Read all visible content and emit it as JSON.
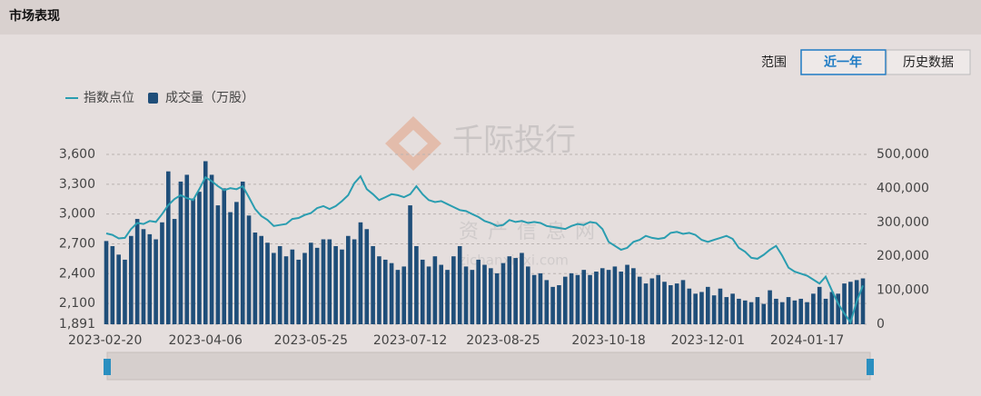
{
  "header": {
    "title": "市场表现"
  },
  "controls": {
    "label": "范围",
    "buttons": [
      "近一年",
      "历史数据"
    ]
  },
  "watermark": {
    "brand": "千际投行",
    "site_cn": "资产信息网",
    "site_url": "zichanxinxi.com"
  },
  "chart_data": {
    "type": "combo",
    "categories": [
      "2023-02-20",
      null,
      null,
      null,
      null,
      null,
      null,
      null,
      null,
      null,
      null,
      null,
      null,
      null,
      null,
      null,
      "2023-04-06",
      null,
      null,
      null,
      null,
      null,
      null,
      null,
      null,
      null,
      null,
      null,
      null,
      null,
      null,
      null,
      null,
      "2023-05-25",
      null,
      null,
      null,
      null,
      null,
      null,
      null,
      null,
      null,
      null,
      null,
      null,
      null,
      null,
      null,
      "2023-07-12",
      null,
      null,
      null,
      null,
      null,
      null,
      null,
      null,
      null,
      null,
      null,
      null,
      null,
      null,
      "2023-08-25",
      null,
      null,
      null,
      null,
      null,
      null,
      null,
      null,
      null,
      null,
      null,
      null,
      null,
      null,
      null,
      null,
      "2023-10-18",
      null,
      null,
      null,
      null,
      null,
      null,
      null,
      null,
      null,
      null,
      null,
      null,
      null,
      null,
      null,
      "2023-12-01",
      null,
      null,
      null,
      null,
      null,
      null,
      null,
      null,
      null,
      null,
      null,
      null,
      null,
      null,
      null,
      "2024-01-17",
      null,
      null,
      null,
      null,
      null,
      null,
      null,
      null,
      null
    ],
    "series": [
      {
        "name": "指数点位",
        "type": "line",
        "color": "#2a9db0",
        "values": [
          2805,
          2790,
          2755,
          2760,
          2850,
          2910,
          2900,
          2930,
          2920,
          3000,
          3090,
          3150,
          3190,
          3160,
          3140,
          3250,
          3370,
          3330,
          3280,
          3240,
          3260,
          3250,
          3280,
          3170,
          3050,
          2980,
          2940,
          2880,
          2890,
          2900,
          2950,
          2960,
          2990,
          3010,
          3060,
          3080,
          3050,
          3080,
          3130,
          3190,
          3310,
          3380,
          3250,
          3200,
          3140,
          3170,
          3200,
          3190,
          3170,
          3200,
          3280,
          3200,
          3140,
          3120,
          3130,
          3100,
          3070,
          3040,
          3030,
          3000,
          2970,
          2930,
          2910,
          2880,
          2890,
          2940,
          2920,
          2930,
          2910,
          2920,
          2910,
          2880,
          2870,
          2860,
          2850,
          2880,
          2900,
          2890,
          2920,
          2910,
          2850,
          2720,
          2680,
          2640,
          2660,
          2720,
          2740,
          2780,
          2760,
          2750,
          2760,
          2810,
          2820,
          2800,
          2810,
          2790,
          2740,
          2720,
          2740,
          2760,
          2780,
          2750,
          2660,
          2620,
          2560,
          2550,
          2590,
          2640,
          2680,
          2580,
          2460,
          2420,
          2400,
          2380,
          2340,
          2300,
          2370,
          2230,
          2100,
          2000,
          1910,
          2120,
          2280
        ]
      },
      {
        "name": "成交量（万股）",
        "type": "bar",
        "axis": "y2",
        "color": "#1f4e79",
        "values": [
          245000,
          230000,
          205000,
          190000,
          260000,
          310000,
          280000,
          265000,
          250000,
          300000,
          450000,
          310000,
          420000,
          440000,
          370000,
          390000,
          480000,
          440000,
          350000,
          400000,
          330000,
          360000,
          420000,
          320000,
          270000,
          260000,
          240000,
          210000,
          230000,
          200000,
          220000,
          190000,
          210000,
          240000,
          225000,
          250000,
          250000,
          230000,
          220000,
          260000,
          250000,
          300000,
          280000,
          230000,
          200000,
          190000,
          180000,
          160000,
          170000,
          350000,
          230000,
          190000,
          170000,
          200000,
          175000,
          160000,
          200000,
          230000,
          170000,
          160000,
          190000,
          175000,
          165000,
          150000,
          180000,
          200000,
          195000,
          210000,
          170000,
          145000,
          150000,
          130000,
          110000,
          115000,
          140000,
          150000,
          145000,
          160000,
          145000,
          155000,
          165000,
          160000,
          170000,
          155000,
          175000,
          165000,
          140000,
          120000,
          135000,
          145000,
          125000,
          115000,
          120000,
          130000,
          105000,
          90000,
          95000,
          110000,
          85000,
          105000,
          80000,
          90000,
          75000,
          70000,
          65000,
          80000,
          60000,
          100000,
          75000,
          65000,
          80000,
          70000,
          75000,
          65000,
          90000,
          110000,
          75000,
          95000,
          90000,
          120000,
          125000,
          130000,
          135000
        ]
      }
    ],
    "ylim": [
      1891,
      3600
    ],
    "yticks": [
      {
        "value": 1891,
        "label": "1,891"
      },
      {
        "value": 2100,
        "label": "2,100"
      },
      {
        "value": 2400,
        "label": "2,400"
      },
      {
        "value": 2700,
        "label": "2,700"
      },
      {
        "value": 3000,
        "label": "3,000"
      },
      {
        "value": 3300,
        "label": "3,300"
      },
      {
        "value": 3600,
        "label": "3,600"
      }
    ],
    "y2lim": [
      0,
      500000
    ],
    "y2ticks": [
      0,
      {
        "value": 100000,
        "label": "100,000"
      },
      {
        "value": 200000,
        "label": "200,000"
      },
      {
        "value": 300000,
        "label": "300,000"
      },
      {
        "value": 400000,
        "label": "400,000"
      },
      {
        "value": 500000,
        "label": "500,000"
      }
    ],
    "grid": true,
    "legend": "top-left"
  }
}
